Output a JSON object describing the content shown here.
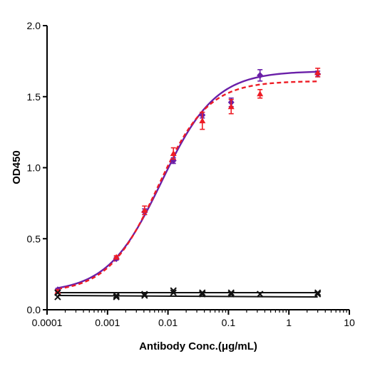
{
  "chart_data": {
    "type": "scatter",
    "xlabel": "Antibody Conc.(μg/mL)",
    "ylabel": "OD450",
    "x_scale": "log",
    "xlim": [
      0.0001,
      10
    ],
    "ylim": [
      0,
      2.0
    ],
    "x_tick_labels": [
      "0.0001",
      "0.001",
      "0.01",
      "0.1",
      "1",
      "10"
    ],
    "y_tick_labels": [
      "0.0",
      "0.5",
      "1.0",
      "1.5",
      "2.0"
    ],
    "grid": false,
    "legend": "none",
    "x": [
      0.00015,
      0.0014,
      0.0041,
      0.0123,
      0.037,
      0.111,
      0.333,
      3.0
    ],
    "series": [
      {
        "color": "#6a1fa8",
        "marker": "diamond",
        "line": "solid",
        "values": [
          0.14,
          0.36,
          0.69,
          1.05,
          1.37,
          1.46,
          1.65,
          1.66
        ],
        "errors": [
          0.01,
          0.01,
          0.02,
          0.02,
          0.02,
          0.03,
          0.04,
          0.02
        ],
        "fit": {
          "bottom": 0.12,
          "top": 1.68,
          "ec50": 0.0078,
          "hill": 0.97
        }
      },
      {
        "color": "#ee1c25",
        "marker": "triangle",
        "line": "dashed",
        "values": [
          0.13,
          0.37,
          0.7,
          1.1,
          1.33,
          1.43,
          1.52,
          1.67
        ],
        "errors": [
          0.01,
          0.01,
          0.03,
          0.04,
          0.06,
          0.05,
          0.03,
          0.03
        ],
        "fit": {
          "bottom": 0.12,
          "top": 1.61,
          "ec50": 0.0068,
          "hill": 1.05
        }
      },
      {
        "color": "#111111",
        "marker": "x",
        "line": "solid",
        "values": [
          0.12,
          0.1,
          0.11,
          0.12,
          0.11,
          0.11,
          0.11,
          0.12
        ],
        "errors": [
          0,
          0,
          0,
          0,
          0,
          0,
          0,
          0
        ],
        "fit": {
          "linear": [
            0.12,
            0.12
          ]
        }
      },
      {
        "color": "#111111",
        "marker": "x",
        "line": "solid",
        "values": [
          0.09,
          0.09,
          0.1,
          0.135,
          0.12,
          0.12,
          0.11,
          0.11
        ],
        "errors": [
          0,
          0,
          0,
          0,
          0,
          0,
          0,
          0
        ],
        "fit": {
          "linear": [
            0.1,
            0.09
          ]
        }
      }
    ]
  }
}
